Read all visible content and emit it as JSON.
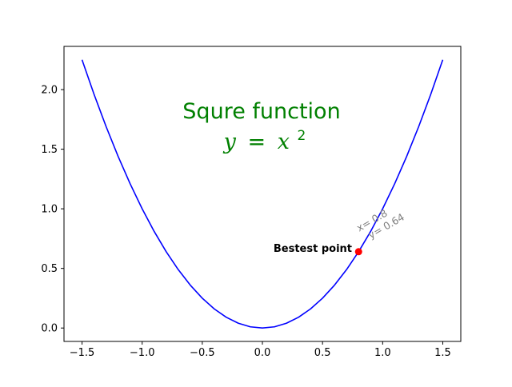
{
  "chart_data": {
    "type": "line",
    "title": "Squre function",
    "equation": {
      "var": "y",
      "op": "=",
      "base": "x",
      "exponent": "2"
    },
    "xlabel": "",
    "ylabel": "",
    "xlim": [
      -1.65,
      1.65
    ],
    "ylim": [
      -0.1125,
      2.3625
    ],
    "grid": false,
    "legend": "none",
    "xticks": [
      -1.5,
      -1.0,
      -0.5,
      0.0,
      0.5,
      1.0,
      1.5
    ],
    "xtick_labels": [
      "−1.5",
      "−1.0",
      "−0.5",
      "0.0",
      "0.5",
      "1.0",
      "1.5"
    ],
    "yticks": [
      0.0,
      0.5,
      1.0,
      1.5,
      2.0
    ],
    "ytick_labels": [
      "0.0",
      "0.5",
      "1.0",
      "1.5",
      "2.0"
    ],
    "series": [
      {
        "color": "#0000ff",
        "x": [
          -1.5,
          -1.4,
          -1.3,
          -1.2,
          -1.1,
          -1.0,
          -0.9,
          -0.8,
          -0.7,
          -0.6,
          -0.5,
          -0.4,
          -0.3,
          -0.2,
          -0.1,
          0.0,
          0.1,
          0.2,
          0.3,
          0.4,
          0.5,
          0.6,
          0.7,
          0.8,
          0.9,
          1.0,
          1.1,
          1.2,
          1.3,
          1.4,
          1.5
        ],
        "y": [
          2.25,
          1.96,
          1.69,
          1.44,
          1.21,
          1.0,
          0.81,
          0.64,
          0.49,
          0.36,
          0.25,
          0.16,
          0.09,
          0.04,
          0.01,
          0.0,
          0.01,
          0.04,
          0.09,
          0.16,
          0.25,
          0.36,
          0.49,
          0.64,
          0.81,
          1.0,
          1.21,
          1.44,
          1.69,
          1.96,
          2.25
        ]
      }
    ],
    "highlight": {
      "x": 0.8,
      "y": 0.64,
      "color": "#ff0000",
      "label": "Bestest point",
      "coord_line1": "x= 0.8",
      "coord_line2": "y= 0.64",
      "coord_color": "#808080"
    },
    "colors": {
      "title": "#008000",
      "axes": "#000000",
      "line": "#0000ff",
      "point": "#ff0000"
    }
  }
}
